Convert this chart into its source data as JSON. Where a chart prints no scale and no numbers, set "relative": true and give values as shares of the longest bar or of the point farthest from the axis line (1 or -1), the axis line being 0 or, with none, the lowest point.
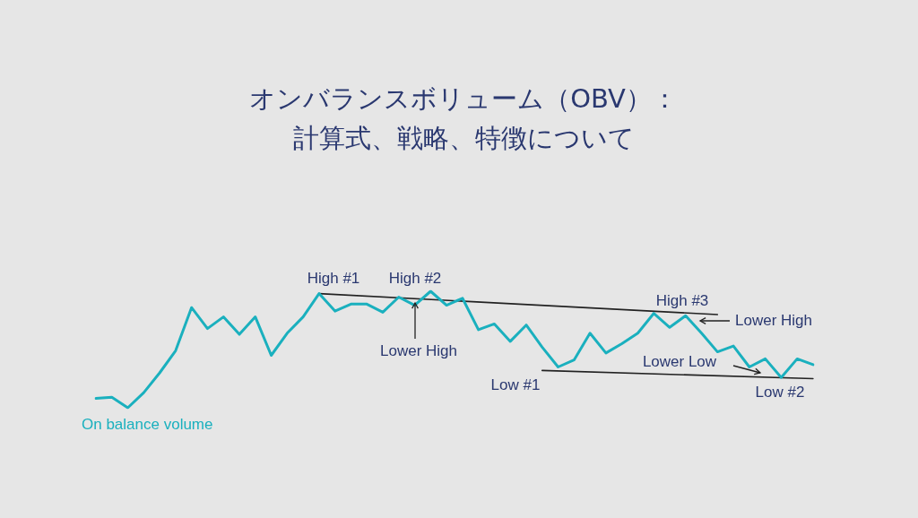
{
  "chart_data": {
    "type": "line",
    "title": "オンバランスボリューム（OBV）：計算式、戦略、特徴について",
    "relative": true,
    "legend": false,
    "marker": "none",
    "line_style": "solid",
    "categories": [
      null,
      null,
      null,
      null,
      null,
      null,
      null,
      null,
      null,
      null,
      null,
      null,
      null,
      null,
      null,
      null,
      null,
      null,
      null,
      null,
      null,
      null,
      null,
      null,
      null,
      null,
      null,
      null,
      null,
      null,
      null,
      null,
      null,
      null,
      null,
      null,
      null,
      null,
      null,
      null,
      null,
      null,
      null,
      null,
      null,
      null
    ],
    "series": [
      {
        "name": "On balance volume",
        "color": "#1ab0be",
        "values": [
          0.08,
          0.09,
          0,
          0.13,
          0.3,
          0.49,
          0.86,
          0.68,
          0.78,
          0.63,
          0.78,
          0.45,
          0.64,
          0.78,
          0.98,
          0.83,
          0.89,
          0.89,
          0.82,
          0.95,
          0.88,
          1,
          0.88,
          0.94,
          0.67,
          0.72,
          0.57,
          0.71,
          0.52,
          0.35,
          0.41,
          0.64,
          0.47,
          0.55,
          0.64,
          0.81,
          0.69,
          0.79,
          0.64,
          0.48,
          0.53,
          0.35,
          0.42,
          0.26,
          0.42,
          0.37
        ]
      },
      {
        "color": "#222222",
        "values": [
          null,
          null,
          null,
          null,
          null,
          null,
          null,
          null,
          null,
          null,
          null,
          null,
          null,
          null,
          0.98,
          null,
          null,
          null,
          null,
          null,
          null,
          null,
          null,
          null,
          null,
          null,
          null,
          null,
          null,
          null,
          null,
          null,
          null,
          null,
          null,
          null,
          null,
          null,
          null,
          0.8,
          null,
          null,
          null,
          null,
          null,
          null
        ]
      },
      {
        "color": "#222222",
        "values": [
          null,
          null,
          null,
          null,
          null,
          null,
          null,
          null,
          null,
          null,
          null,
          null,
          null,
          null,
          null,
          null,
          null,
          null,
          null,
          null,
          null,
          null,
          null,
          null,
          null,
          null,
          null,
          null,
          0.32,
          null,
          null,
          null,
          null,
          null,
          null,
          null,
          null,
          null,
          null,
          null,
          null,
          null,
          null,
          null,
          null,
          0.25
        ]
      }
    ],
    "annotations": [
      "High #1",
      "High #2",
      "Lower High",
      "High #3",
      "Lower High",
      "Lower Low",
      "Low #1",
      "Low #2"
    ]
  }
}
